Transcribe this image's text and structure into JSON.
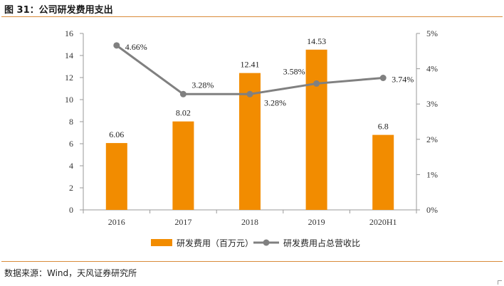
{
  "figure": {
    "title": "图 31：公司研发费用支出",
    "source": "数据来源：Wind，天风证券研究所"
  },
  "chart_data": {
    "type": "bar+line",
    "categories": [
      "2016",
      "2017",
      "2018",
      "2019",
      "2020H1"
    ],
    "series": [
      {
        "name": "研发费用（百万元）",
        "type": "bar",
        "axis": "left",
        "values": [
          6.06,
          8.02,
          12.41,
          14.53,
          6.8
        ],
        "labels": [
          "6.06",
          "8.02",
          "12.41",
          "14.53",
          "6.8"
        ],
        "color": "#f28c00"
      },
      {
        "name": "研发费用占总营收比",
        "type": "line",
        "axis": "right",
        "values": [
          4.66,
          3.28,
          3.28,
          3.58,
          3.74
        ],
        "labels": [
          "4.66%",
          "3.28%",
          "3.28%",
          "3.58%",
          "3.74%"
        ],
        "color": "#808080"
      }
    ],
    "y_left": {
      "min": 0,
      "max": 16,
      "ticks": [
        "0",
        "2",
        "4",
        "6",
        "8",
        "10",
        "12",
        "14",
        "16"
      ]
    },
    "y_right": {
      "min": 0,
      "max": 5,
      "ticks": [
        "0%",
        "1%",
        "2%",
        "3%",
        "4%",
        "5%"
      ]
    },
    "grid": false,
    "legend": "bottom"
  }
}
